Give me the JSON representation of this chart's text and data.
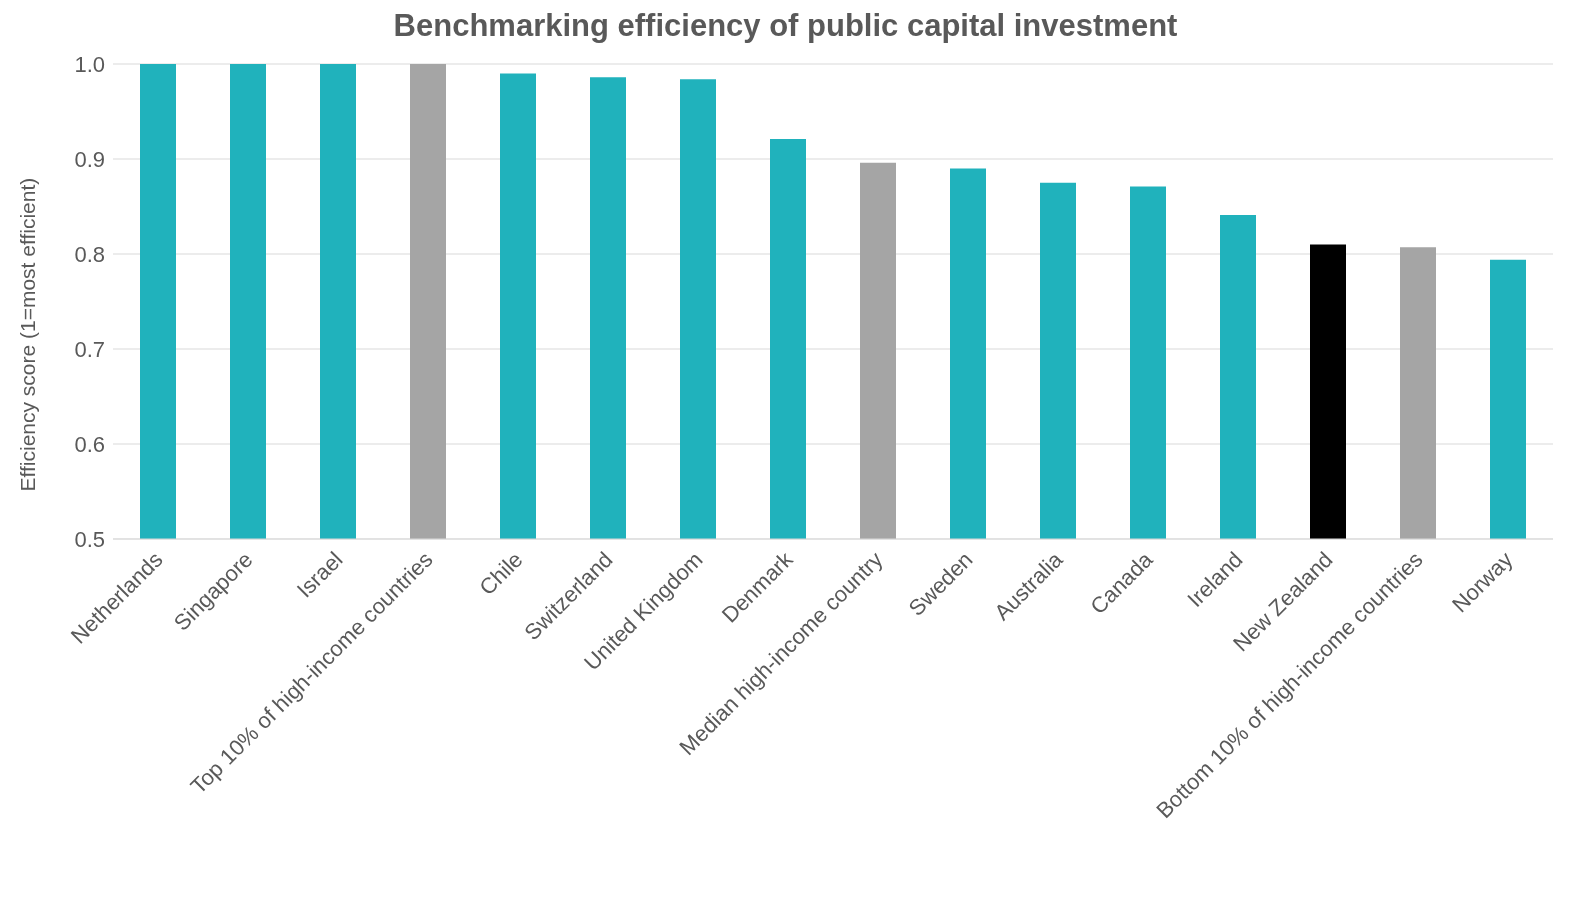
{
  "chart_data": {
    "type": "bar",
    "title": "Benchmarking efficiency of public capital investment",
    "ylabel": "Efficiency score (1=most efficient)",
    "categories": [
      "Netherlands",
      "Singapore",
      "Israel",
      "Top 10% of high-income countries",
      "Chile",
      "Switzerland",
      "United Kingdom",
      "Denmark",
      "Median high-income country",
      "Sweden",
      "Australia",
      "Canada",
      "Ireland",
      "New Zealand",
      "Bottom 10% of high-income countries",
      "Norway"
    ],
    "values": [
      1.0,
      1.0,
      1.0,
      1.0,
      0.99,
      0.986,
      0.984,
      0.921,
      0.896,
      0.89,
      0.875,
      0.871,
      0.841,
      0.81,
      0.807,
      0.794
    ],
    "colors": [
      "#20b2bc",
      "#20b2bc",
      "#20b2bc",
      "#a5a5a5",
      "#20b2bc",
      "#20b2bc",
      "#20b2bc",
      "#20b2bc",
      "#a5a5a5",
      "#20b2bc",
      "#20b2bc",
      "#20b2bc",
      "#20b2bc",
      "#000000",
      "#a5a5a5",
      "#20b2bc"
    ],
    "ylim": [
      0.5,
      1.0
    ],
    "yticks": [
      {
        "value": 0.5,
        "label": "0.5"
      },
      {
        "value": 0.6,
        "label": "0.6"
      },
      {
        "value": 0.7,
        "label": "0.7"
      },
      {
        "value": 0.8,
        "label": "0.8"
      },
      {
        "value": 0.9,
        "label": "0.9"
      },
      {
        "value": 1.0,
        "label": "1.0"
      }
    ],
    "grid": "y",
    "legend": false
  }
}
